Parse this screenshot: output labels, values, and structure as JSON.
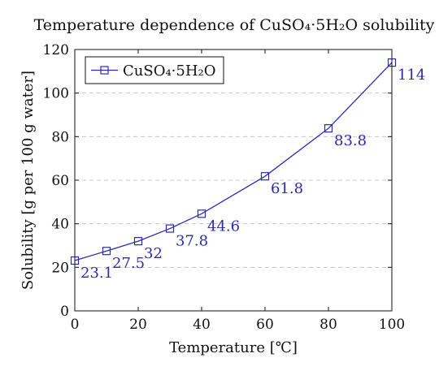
{
  "chart_data": {
    "type": "line",
    "title": "Temperature dependence of CuSO₄·5H₂O solubility",
    "xlabel": "Temperature [℃]",
    "ylabel": "Solubility [g per 100 g water]",
    "xlim": [
      0,
      100
    ],
    "ylim": [
      0,
      120
    ],
    "xticks": [
      0,
      20,
      40,
      60,
      80,
      100
    ],
    "yticks": [
      0,
      20,
      40,
      60,
      80,
      100,
      120
    ],
    "grid": "horizontal-dashed",
    "legend_position": "top-left",
    "series": [
      {
        "name": "CuSO₄·5H₂O",
        "color": "#2b2bb0",
        "marker": "square",
        "x": [
          0,
          10,
          20,
          30,
          40,
          60,
          80,
          100
        ],
        "y": [
          23.1,
          27.5,
          32,
          37.8,
          44.6,
          61.8,
          83.8,
          114
        ],
        "labels": [
          "23.1",
          "27.5",
          "32",
          "37.8",
          "44.6",
          "61.8",
          "83.8",
          "114"
        ]
      }
    ]
  }
}
